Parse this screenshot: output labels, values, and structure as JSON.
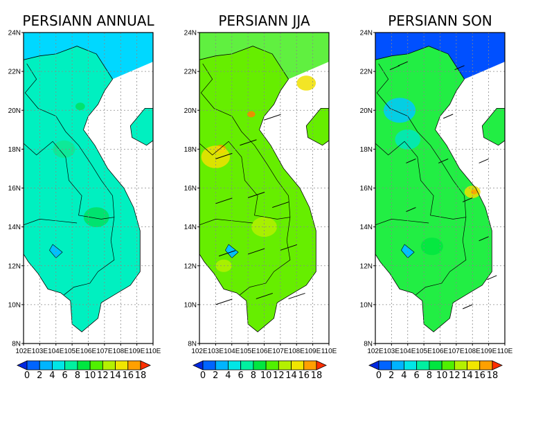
{
  "panels": [
    {
      "title": "PERSIANN ANNUAL",
      "y_ticks": [
        "24N",
        "22N",
        "20N",
        "18N",
        "16N",
        "14N",
        "12N",
        "10N",
        "8N"
      ],
      "x_ticks": [
        "102E",
        "103E",
        "104E",
        "105E",
        "106E",
        "107E",
        "108E",
        "109E",
        "110E"
      ],
      "colorbar_labels": [
        "0",
        "2",
        "4",
        "6",
        "8",
        "10",
        "12",
        "14",
        "16",
        "18"
      ],
      "base_color": "#00f0c0",
      "vectors": false
    },
    {
      "title": "PERSIANN JJA",
      "y_ticks": [
        "24N",
        "22N",
        "20N",
        "18N",
        "16N",
        "14N",
        "12N",
        "10N",
        "8N"
      ],
      "x_ticks": [
        "102E",
        "103E",
        "104E",
        "105E",
        "106E",
        "107E",
        "108E",
        "109E",
        "110E"
      ],
      "colorbar_labels": [
        "0",
        "2",
        "4",
        "6",
        "8",
        "10",
        "12",
        "14",
        "16",
        "18"
      ],
      "base_color": "#66ee00",
      "vectors": true
    },
    {
      "title": "PERSIANN SON",
      "y_ticks": [
        "24N",
        "22N",
        "20N",
        "18N",
        "16N",
        "14N",
        "12N",
        "10N",
        "8N"
      ],
      "x_ticks": [
        "102E",
        "103E",
        "104E",
        "105E",
        "106E",
        "107E",
        "108E",
        "109E",
        "110E"
      ],
      "colorbar_labels": [
        "0",
        "2",
        "4",
        "6",
        "8",
        "10",
        "12",
        "14",
        "16",
        "18"
      ],
      "base_color": "#22ee44",
      "vectors": true
    }
  ],
  "colorbar_colors": [
    "#0028e0",
    "#0064ff",
    "#00b4ff",
    "#00e6e6",
    "#00f0a0",
    "#00e640",
    "#50f000",
    "#b4f000",
    "#f0e600",
    "#ffa000",
    "#ff3000"
  ]
}
